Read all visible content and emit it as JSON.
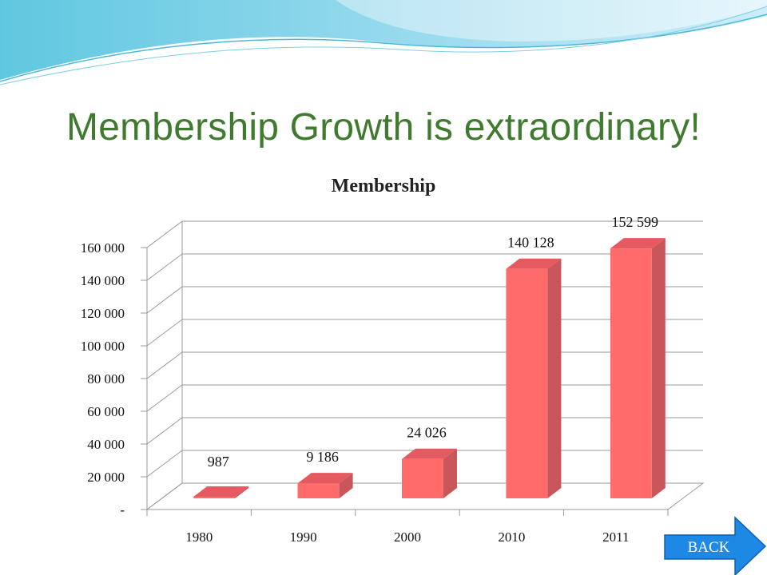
{
  "slide": {
    "title": "Membership Growth is extraordinary!"
  },
  "nav": {
    "back_label": "BACK"
  },
  "chart_data": {
    "type": "bar",
    "title": "Membership",
    "categories": [
      "1980",
      "1990",
      "2000",
      "2010",
      "2011"
    ],
    "values": [
      987,
      9186,
      24026,
      140128,
      152599
    ],
    "value_labels": [
      "987",
      "9 186",
      "24 026",
      "140 128",
      "152 599"
    ],
    "y_ticks": [
      0,
      20000,
      40000,
      60000,
      80000,
      100000,
      120000,
      140000,
      160000
    ],
    "y_tick_labels": [
      "-",
      "20 000",
      "40 000",
      "60 000",
      "80 000",
      "100 000",
      "120 000",
      "140 000",
      "160 000"
    ],
    "ylim": [
      0,
      160000
    ],
    "grid": true,
    "legend": "none",
    "bar_color": "#ff6b6b",
    "bar_side_color": "#c9565a",
    "bar_top_color": "#e55a60"
  }
}
